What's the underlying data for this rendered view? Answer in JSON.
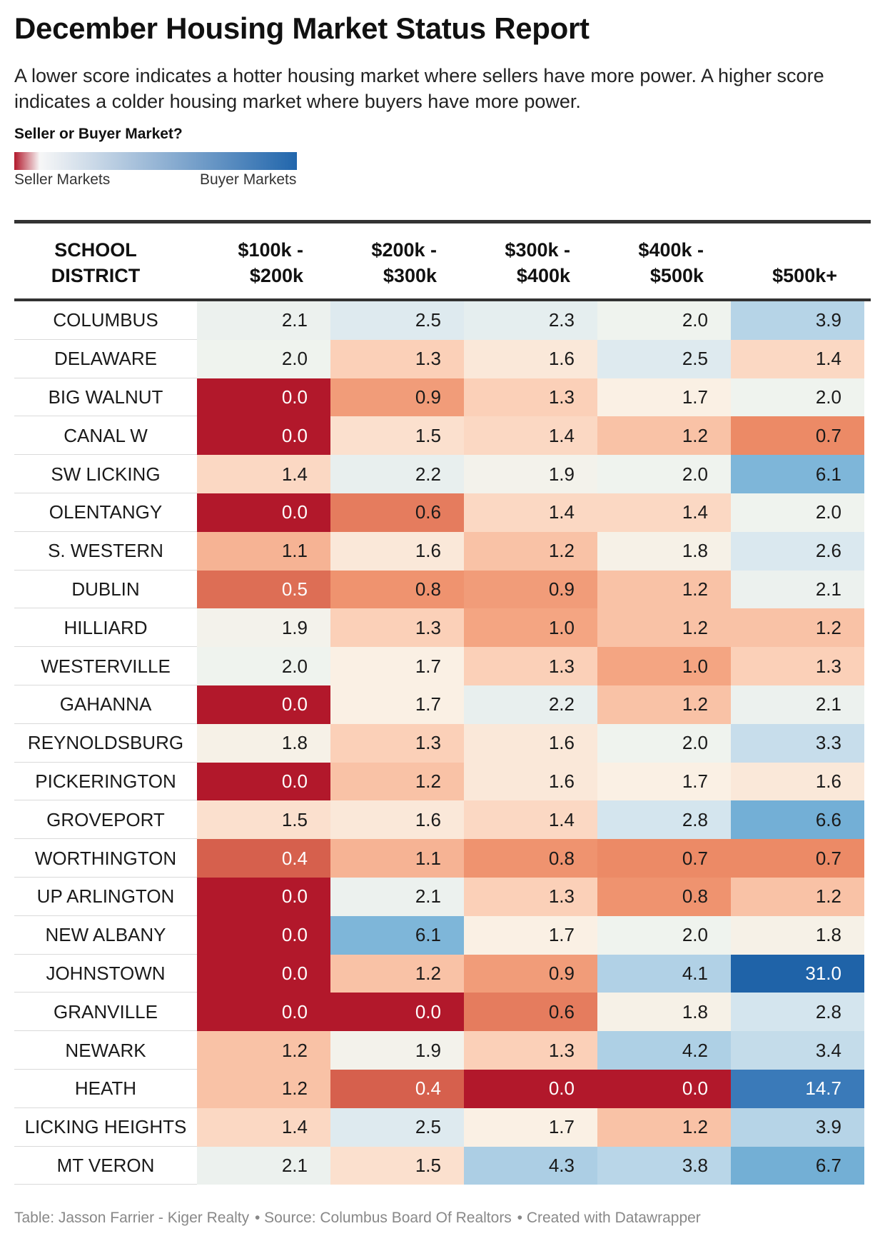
{
  "title": "December Housing Market Status Report",
  "description": "A lower score indicates a hotter housing market where sellers have more power. A higher score indicates a colder housing market where buyers have more power.",
  "legend": {
    "title": "Seller or Buyer Market?",
    "left_label": "Seller Markets",
    "right_label": "Buyer Markets",
    "colors": [
      "#b2182b",
      "#f7f7f7",
      "#2166ac"
    ]
  },
  "columns": {
    "district": [
      "SCHOOL",
      "DISTRICT"
    ],
    "ranges": [
      [
        "$100k -",
        "$200k"
      ],
      [
        "$200k -",
        "$300k"
      ],
      [
        "$300k -",
        "$400k"
      ],
      [
        "$400k -",
        "$500k"
      ],
      [
        "",
        "$500k+"
      ]
    ]
  },
  "chart_data": {
    "type": "table",
    "color_scale": "red (seller market, low score) to blue (buyer market, high score)",
    "columns": [
      "SCHOOL DISTRICT",
      "$100k - $200k",
      "$200k - $300k",
      "$300k - $400k",
      "$400k - $500k",
      "$500k+"
    ],
    "rows": [
      {
        "district": "COLUMBUS",
        "values": [
          "2.1",
          "2.5",
          "2.3",
          "2.0",
          "3.9"
        ]
      },
      {
        "district": "DELAWARE",
        "values": [
          "2.0",
          "1.3",
          "1.6",
          "2.5",
          "1.4"
        ]
      },
      {
        "district": "BIG WALNUT",
        "values": [
          "0.0",
          "0.9",
          "1.3",
          "1.7",
          "2.0"
        ]
      },
      {
        "district": "CANAL W",
        "values": [
          "0.0",
          "1.5",
          "1.4",
          "1.2",
          "0.7"
        ]
      },
      {
        "district": "SW LICKING",
        "values": [
          "1.4",
          "2.2",
          "1.9",
          "2.0",
          "6.1"
        ]
      },
      {
        "district": "OLENTANGY",
        "values": [
          "0.0",
          "0.6",
          "1.4",
          "1.4",
          "2.0"
        ]
      },
      {
        "district": "S. WESTERN",
        "values": [
          "1.1",
          "1.6",
          "1.2",
          "1.8",
          "2.6"
        ]
      },
      {
        "district": "DUBLIN",
        "values": [
          "0.5",
          "0.8",
          "0.9",
          "1.2",
          "2.1"
        ]
      },
      {
        "district": "HILLIARD",
        "values": [
          "1.9",
          "1.3",
          "1.0",
          "1.2",
          "1.2"
        ]
      },
      {
        "district": "WESTERVILLE",
        "values": [
          "2.0",
          "1.7",
          "1.3",
          "1.0",
          "1.3"
        ]
      },
      {
        "district": "GAHANNA",
        "values": [
          "0.0",
          "1.7",
          "2.2",
          "1.2",
          "2.1"
        ]
      },
      {
        "district": "REYNOLDSBURG",
        "values": [
          "1.8",
          "1.3",
          "1.6",
          "2.0",
          "3.3"
        ]
      },
      {
        "district": "PICKERINGTON",
        "values": [
          "0.0",
          "1.2",
          "1.6",
          "1.7",
          "1.6"
        ]
      },
      {
        "district": "GROVEPORT",
        "values": [
          "1.5",
          "1.6",
          "1.4",
          "2.8",
          "6.6"
        ]
      },
      {
        "district": "WORTHINGTON",
        "values": [
          "0.4",
          "1.1",
          "0.8",
          "0.7",
          "0.7"
        ]
      },
      {
        "district": "UP ARLINGTON",
        "values": [
          "0.0",
          "2.1",
          "1.3",
          "0.8",
          "1.2"
        ]
      },
      {
        "district": "NEW ALBANY",
        "values": [
          "0.0",
          "6.1",
          "1.7",
          "2.0",
          "1.8"
        ]
      },
      {
        "district": "JOHNSTOWN",
        "values": [
          "0.0",
          "1.2",
          "0.9",
          "4.1",
          "31.0"
        ]
      },
      {
        "district": "GRANVILLE",
        "values": [
          "0.0",
          "0.0",
          "0.6",
          "1.8",
          "2.8"
        ]
      },
      {
        "district": "NEWARK",
        "values": [
          "1.2",
          "1.9",
          "1.3",
          "4.2",
          "3.4"
        ]
      },
      {
        "district": "HEATH",
        "values": [
          "1.2",
          "0.4",
          "0.0",
          "0.0",
          "14.7"
        ]
      },
      {
        "district": "LICKING HEIGHTS",
        "values": [
          "1.4",
          "2.5",
          "1.7",
          "1.2",
          "3.9"
        ]
      },
      {
        "district": "MT VERON",
        "values": [
          "2.1",
          "1.5",
          "4.3",
          "3.8",
          "6.7"
        ]
      }
    ]
  },
  "footer": {
    "table_credit": "Table: Jasson Farrier - Kiger Realty",
    "source": "• Source: Columbus Board Of Realtors",
    "created": "• Created with Datawrapper"
  }
}
